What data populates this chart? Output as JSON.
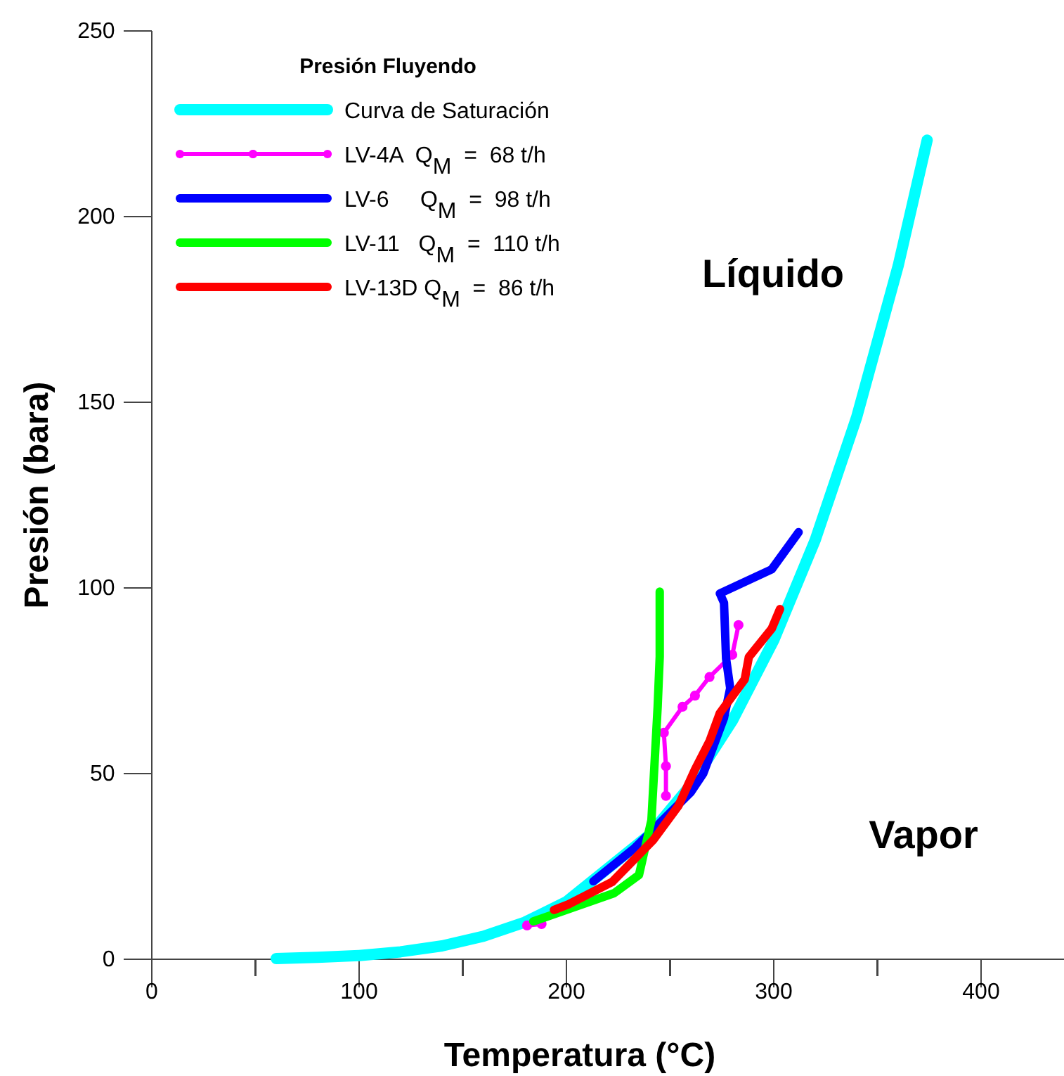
{
  "chart_data": {
    "type": "line",
    "xlabel": "Temperatura (°C)",
    "ylabel": "Presión (bara)",
    "legend_title": "Presión Fluyendo",
    "legend": "top left",
    "xlim": [
      0,
      440
    ],
    "ylim": [
      0,
      250
    ],
    "xticks": [
      0,
      {
        "value": 50,
        "label": null
      },
      100,
      {
        "value": 150,
        "label": null
      },
      200,
      {
        "value": 250,
        "label": null
      },
      300,
      {
        "value": 350,
        "label": null
      },
      400
    ],
    "yticks": [
      0,
      50,
      100,
      150,
      200,
      250
    ],
    "grid": false,
    "line_style": "solid",
    "annotations": [
      "Líquido",
      "Vapor"
    ],
    "series": [
      {
        "name": "Curva de Saturación",
        "color": "#00ffff",
        "marker": "none",
        "x": [
          60,
          80,
          100,
          120,
          140,
          160,
          180,
          200,
          240,
          260,
          280,
          300,
          320,
          340,
          360,
          374
        ],
        "values": [
          0.2,
          0.5,
          1,
          2,
          3.6,
          6.2,
          10,
          15.5,
          33.5,
          46.9,
          64.2,
          85.9,
          112.9,
          146,
          186.7,
          220.6
        ]
      },
      {
        "name": "LV-4A  Q$_{M}$  =  68 t/h",
        "color": "#ff00ff",
        "marker": "circle",
        "x": [
          181,
          188,
          200,
          220,
          240,
          248,
          248,
          247,
          256,
          262,
          269,
          280,
          283
        ],
        "values": [
          9.1,
          9.5,
          null,
          null,
          null,
          44,
          52,
          61,
          68,
          71,
          76,
          82,
          90
        ]
      },
      {
        "name": "LV-6     Q$_{M}$  =  98 t/h",
        "color": "#0000ff",
        "marker": "none",
        "x": [
          213,
          233,
          260,
          266,
          276,
          279,
          277,
          276,
          274,
          299,
          312
        ],
        "values": [
          21,
          30,
          45,
          50,
          65,
          73,
          81,
          96,
          98.5,
          105,
          115
        ]
      },
      {
        "name": "LV-11   Q$_{M}$  =  110 t/h",
        "color": "#00ff00",
        "marker": "none",
        "x": [
          184,
          223,
          235,
          241,
          244,
          245,
          245
        ],
        "values": [
          10.2,
          17.8,
          22.7,
          37.5,
          68,
          81.5,
          99
        ]
      },
      {
        "name": "LV-13D Q$_{M}$  =  86 t/h",
        "color": "#ff0000",
        "marker": "none",
        "x": [
          194,
          201,
          222,
          242,
          254,
          262,
          269,
          274,
          286,
          288,
          299,
          303
        ],
        "values": [
          13.3,
          14.8,
          20.8,
          32.2,
          41.3,
          51.1,
          58.7,
          66.3,
          75.4,
          81.4,
          89,
          94.3
        ]
      }
    ]
  }
}
